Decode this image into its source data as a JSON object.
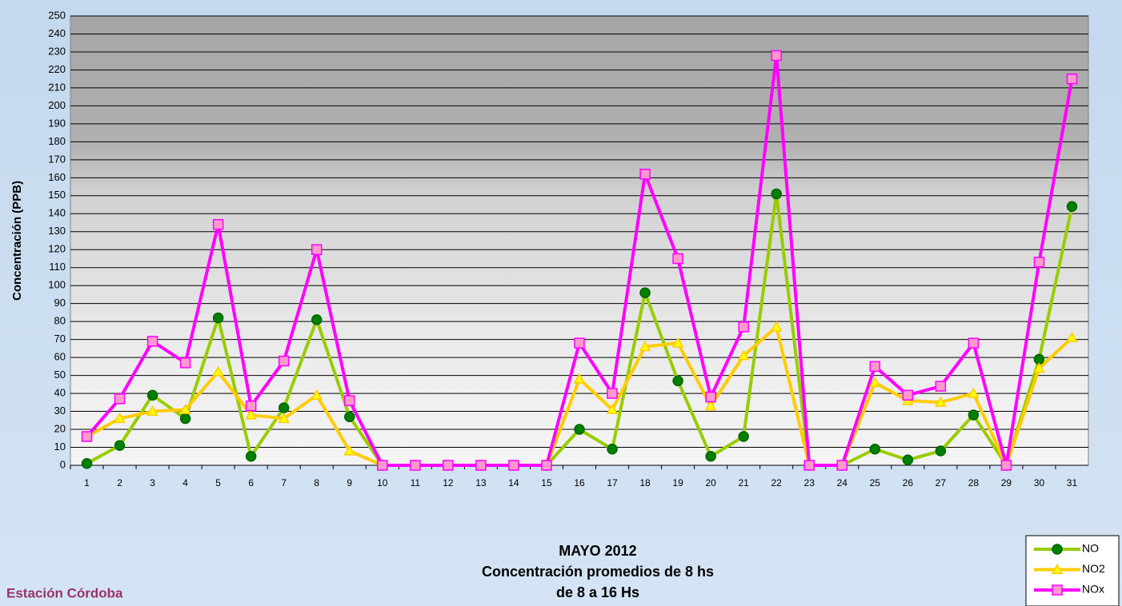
{
  "chart_data": {
    "type": "line",
    "title": [
      "MAYO 2012",
      "Concentración promedios de 8 hs",
      "de 8 a 16 Hs"
    ],
    "annotation": "Estación Córdoba",
    "y_label": "Concentración (PPB)",
    "categories": [
      "1",
      "2",
      "3",
      "4",
      "5",
      "6",
      "7",
      "8",
      "9",
      "10",
      "11",
      "12",
      "13",
      "14",
      "15",
      "16",
      "17",
      "18",
      "19",
      "20",
      "21",
      "22",
      "23",
      "24",
      "25",
      "26",
      "27",
      "28",
      "29",
      "30",
      "31"
    ],
    "series": [
      {
        "name": "NO",
        "color": "#99cc00",
        "marker": "circle",
        "marker_fill": "#008000",
        "marker_stroke": "#006400",
        "values": [
          1,
          11,
          39,
          26,
          82,
          5,
          32,
          81,
          27,
          0,
          0,
          0,
          0,
          0,
          0,
          20,
          9,
          96,
          47,
          5,
          16,
          151,
          0,
          0,
          9,
          3,
          8,
          28,
          0,
          59,
          144
        ]
      },
      {
        "name": "NO2",
        "color": "#ffcc00",
        "marker": "triangle",
        "marker_fill": "#ffff00",
        "marker_stroke": "#ffcc00",
        "values": [
          16,
          26,
          30,
          31,
          52,
          28,
          26,
          39,
          8,
          0,
          0,
          0,
          0,
          0,
          0,
          48,
          31,
          66,
          68,
          33,
          61,
          77,
          0,
          0,
          46,
          36,
          35,
          40,
          0,
          54,
          71
        ]
      },
      {
        "name": "NOx",
        "color": "#ff00ff",
        "marker": "square",
        "marker_fill": "#ff99cc",
        "marker_stroke": "#ff00ff",
        "values": [
          16,
          37,
          69,
          57,
          134,
          33,
          58,
          120,
          36,
          0,
          0,
          0,
          0,
          0,
          0,
          68,
          40,
          162,
          115,
          38,
          77,
          228,
          0,
          0,
          55,
          39,
          44,
          68,
          0,
          113,
          215
        ]
      }
    ],
    "ylim": [
      0,
      250
    ],
    "yticks": [
      0,
      10,
      20,
      30,
      40,
      50,
      60,
      70,
      80,
      90,
      100,
      110,
      120,
      130,
      140,
      150,
      160,
      170,
      180,
      190,
      200,
      210,
      220,
      230,
      240,
      250
    ],
    "grid": true,
    "legend": "bottom-right"
  }
}
